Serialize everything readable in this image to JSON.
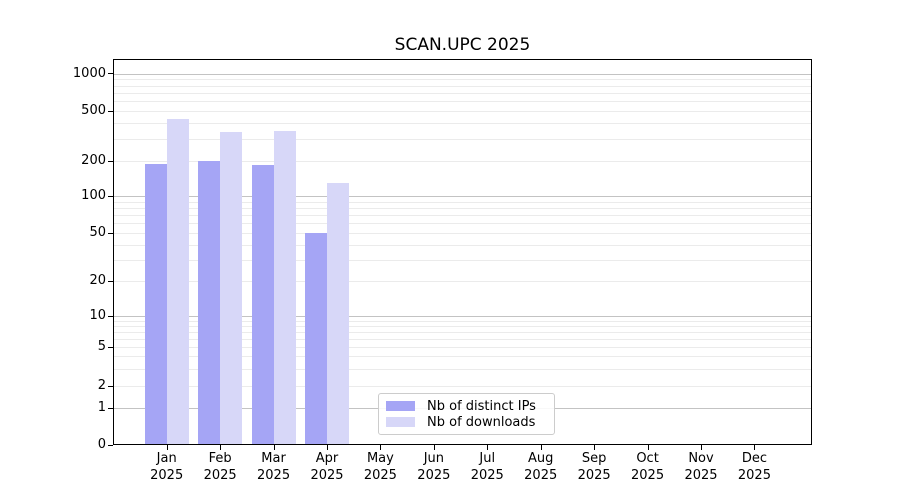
{
  "title": "SCAN.UPC 2025",
  "chart_data": {
    "type": "bar",
    "title": "SCAN.UPC 2025",
    "x_categories": [
      "Jan 2025",
      "Feb 2025",
      "Mar 2025",
      "Apr 2025",
      "May 2025",
      "Jun 2025",
      "Jul 2025",
      "Aug 2025",
      "Sep 2025",
      "Oct 2025",
      "Nov 2025",
      "Dec 2025"
    ],
    "months": [
      "Jan",
      "Feb",
      "Mar",
      "Apr",
      "May",
      "Jun",
      "Jul",
      "Aug",
      "Sep",
      "Oct",
      "Nov",
      "Dec"
    ],
    "year": "2025",
    "series": [
      {
        "name": "Nb of distinct IPs",
        "color": "#a5a5f5",
        "values": [
          190,
          200,
          185,
          50,
          null,
          null,
          null,
          null,
          null,
          null,
          null,
          null
        ]
      },
      {
        "name": "Nb of downloads",
        "color": "#d7d7f8",
        "values": [
          430,
          340,
          345,
          130,
          null,
          null,
          null,
          null,
          null,
          null,
          null,
          null
        ]
      }
    ],
    "y_scale": "symlog",
    "y_ticks": [
      0,
      1,
      2,
      5,
      10,
      20,
      50,
      100,
      200,
      500,
      1000
    ],
    "ylim": [
      0,
      1300
    ],
    "grid": "horizontal-log-minor-and-major",
    "legend_position": "lower-center"
  }
}
